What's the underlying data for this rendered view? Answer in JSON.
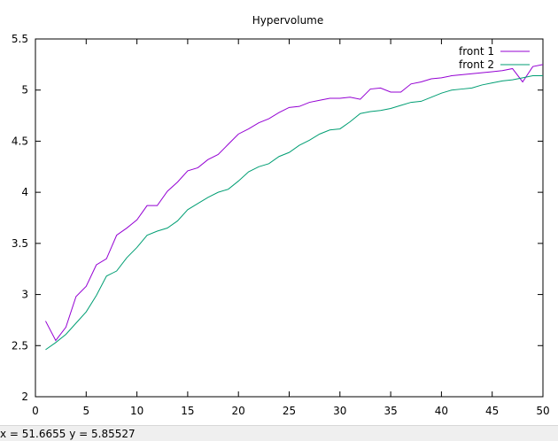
{
  "status_bar": {
    "text": "x = 51.6655 y = 5.85527"
  },
  "chart_data": {
    "type": "line",
    "title": "Hypervolume",
    "xlabel": "",
    "ylabel": "",
    "xlim": [
      0,
      50
    ],
    "ylim": [
      2,
      5.5
    ],
    "xticks": [
      0,
      5,
      10,
      15,
      20,
      25,
      30,
      35,
      40,
      45,
      50
    ],
    "yticks": [
      2,
      2.5,
      3,
      3.5,
      4,
      4.5,
      5,
      5.5
    ],
    "grid": false,
    "legend_position": "top-right",
    "x": [
      1,
      2,
      3,
      4,
      5,
      6,
      7,
      8,
      9,
      10,
      11,
      12,
      13,
      14,
      15,
      16,
      17,
      18,
      19,
      20,
      21,
      22,
      23,
      24,
      25,
      26,
      27,
      28,
      29,
      30,
      31,
      32,
      33,
      34,
      35,
      36,
      37,
      38,
      39,
      40,
      41,
      42,
      43,
      44,
      45,
      46,
      47,
      48,
      49,
      50
    ],
    "series": [
      {
        "name": "front 1",
        "color": "#9400d3",
        "values": [
          2.74,
          2.55,
          2.68,
          2.98,
          3.08,
          3.29,
          3.35,
          3.58,
          3.65,
          3.73,
          3.87,
          3.87,
          4.01,
          4.1,
          4.21,
          4.24,
          4.32,
          4.37,
          4.47,
          4.57,
          4.62,
          4.68,
          4.72,
          4.78,
          4.83,
          4.84,
          4.88,
          4.9,
          4.92,
          4.92,
          4.93,
          4.91,
          5.01,
          5.02,
          4.98,
          4.98,
          5.06,
          5.08,
          5.11,
          5.12,
          5.14,
          5.15,
          5.16,
          5.17,
          5.18,
          5.19,
          5.21,
          5.08,
          5.23,
          5.25
        ]
      },
      {
        "name": "front 2",
        "color": "#009e73",
        "values": [
          2.46,
          2.53,
          2.61,
          2.72,
          2.83,
          2.99,
          3.18,
          3.23,
          3.36,
          3.46,
          3.58,
          3.62,
          3.65,
          3.72,
          3.83,
          3.89,
          3.95,
          4.0,
          4.03,
          4.11,
          4.2,
          4.25,
          4.28,
          4.35,
          4.39,
          4.46,
          4.51,
          4.57,
          4.61,
          4.62,
          4.69,
          4.77,
          4.79,
          4.8,
          4.82,
          4.85,
          4.88,
          4.89,
          4.93,
          4.97,
          5.0,
          5.01,
          5.02,
          5.05,
          5.07,
          5.09,
          5.1,
          5.12,
          5.14,
          5.14
        ]
      }
    ]
  }
}
